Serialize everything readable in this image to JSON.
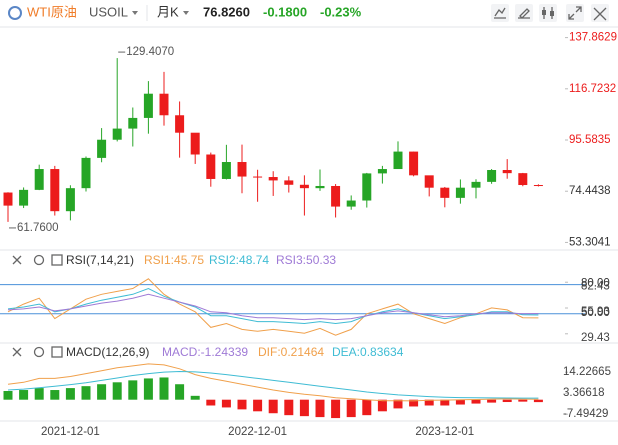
{
  "header": {
    "symbol_name": "WTI原油",
    "symbol": "USOIL",
    "period": "月K",
    "price": "76.8260",
    "change": "-0.1800",
    "change_pct": "-0.23%"
  },
  "chart_data": [
    {
      "type": "candlestick",
      "categories": [
        null,
        null,
        null,
        null,
        "2021-12-01",
        null,
        null,
        null,
        null,
        null,
        null,
        null,
        null,
        null,
        null,
        null,
        "2022-12-01",
        null,
        null,
        null,
        null,
        null,
        null,
        null,
        null,
        null,
        null,
        null,
        "2023-12-01",
        null,
        null,
        null,
        null,
        null,
        null
      ],
      "open": [
        73.9,
        68.5,
        75.0,
        83.6,
        66.2,
        75.7,
        88.2,
        95.7,
        100.3,
        104.7,
        114.7,
        105.8,
        98.6,
        89.6,
        79.5,
        86.5,
        80.5,
        80.3,
        78.9,
        77.1,
        75.7,
        76.6,
        68.1,
        70.6,
        81.8,
        83.6,
        90.8,
        81.0,
        75.9,
        71.7,
        75.9,
        78.3,
        83.2,
        81.9,
        77.0
      ],
      "high": [
        74.0,
        76.0,
        85.4,
        84.9,
        76.9,
        88.8,
        100.5,
        129.407,
        109.0,
        119.9,
        123.7,
        111.5,
        97.7,
        90.4,
        93.6,
        93.7,
        83.3,
        82.7,
        80.6,
        81.0,
        83.4,
        77.4,
        72.7,
        82.0,
        84.9,
        95.0,
        90.8,
        80.9,
        76.2,
        79.3,
        79.4,
        83.6,
        87.7,
        82.0,
        77.3
      ],
      "low": [
        61.76,
        67.5,
        74.9,
        64.4,
        62.4,
        74.3,
        86.4,
        95.0,
        92.9,
        98.2,
        101.5,
        88.3,
        85.7,
        76.3,
        79.3,
        73.6,
        70.1,
        72.5,
        73.9,
        64.4,
        74.6,
        63.6,
        66.8,
        67.7,
        77.6,
        83.6,
        80.6,
        72.3,
        67.8,
        69.3,
        71.5,
        77.5,
        79.6,
        76.5,
        76.4
      ],
      "close": [
        68.5,
        75.0,
        83.6,
        66.2,
        75.7,
        88.2,
        95.7,
        100.3,
        104.7,
        114.7,
        105.8,
        98.6,
        89.6,
        79.5,
        86.5,
        80.5,
        80.3,
        78.9,
        77.1,
        75.7,
        76.6,
        68.1,
        70.6,
        81.8,
        83.6,
        90.8,
        81.0,
        75.9,
        71.7,
        75.9,
        78.3,
        83.2,
        81.9,
        77.0,
        76.826
      ],
      "up_color": "#26a526",
      "down_color": "#ec1c1c",
      "ylim": [
        51,
        141
      ],
      "yticks": [
        137.8629,
        116.7232,
        95.5835,
        74.4438,
        53.3041
      ],
      "annotations": [
        {
          "value": 129.407,
          "label": "129.4070"
        },
        {
          "value": 61.76,
          "label": "61.7600"
        }
      ]
    },
    {
      "type": "line",
      "title": "RSI(7,14,21)",
      "series": [
        {
          "name": "RSI1:",
          "color": "#f0a04b",
          "values": [
            52,
            60,
            66,
            45,
            55,
            65,
            70,
            73,
            76,
            86,
            70,
            60,
            52,
            36,
            40,
            34,
            32,
            34,
            32,
            30,
            35,
            28,
            34,
            50,
            55,
            60,
            50,
            45,
            40,
            46,
            50,
            56,
            54,
            46,
            45.75
          ]
        },
        {
          "name": "RSI2:",
          "color": "#3fbcd4",
          "values": [
            55,
            57,
            60,
            52,
            55,
            60,
            64,
            67,
            70,
            76,
            68,
            62,
            57,
            48,
            48,
            45,
            42,
            42,
            41,
            40,
            42,
            40,
            42,
            48,
            52,
            55,
            51,
            48,
            45,
            47,
            49,
            52,
            52,
            49,
            48.74
          ]
        },
        {
          "name": "RSI3:",
          "color": "#9f7ad6",
          "values": [
            54,
            55,
            57,
            53,
            55,
            58,
            61,
            63,
            66,
            70,
            66,
            62,
            58,
            52,
            51,
            48,
            46,
            46,
            45,
            44,
            45,
            44,
            45,
            48,
            51,
            53,
            51,
            49,
            47,
            48,
            50,
            51,
            51,
            50,
            50.33
          ]
        }
      ],
      "ylim": [
        21,
        95
      ],
      "yticks": [
        82.43,
        55.93,
        29.43
      ],
      "hlines": [
        {
          "value": 80,
          "label": "80.00"
        },
        {
          "value": 50,
          "label": "50.00"
        }
      ],
      "hline_color": "#4a90d9"
    },
    {
      "type": "macd",
      "title": "MACD(12,26,9)",
      "histogram": {
        "name": "MACD:",
        "color": "#9f7ad6",
        "up_color": "#26a526",
        "down_color": "#ec1c1c",
        "values": [
          4.5,
          5,
          6,
          5,
          6,
          7,
          8,
          9,
          10,
          11,
          11.5,
          8,
          2,
          -3,
          -4,
          -5,
          -6,
          -7,
          -8,
          -8.5,
          -9,
          -9.5,
          -9,
          -8,
          -6,
          -4.5,
          -3.5,
          -3,
          -3,
          -2.5,
          -2,
          -1.5,
          -1.2,
          -1,
          -1.24339
        ]
      },
      "series": [
        {
          "name": "DIF:",
          "color": "#f0a04b",
          "values": [
            8,
            9,
            11,
            11,
            12,
            13.5,
            15,
            16.5,
            17.5,
            18.5,
            18,
            16,
            13,
            11,
            9.5,
            8,
            6.5,
            5,
            3.8,
            2.8,
            2,
            1,
            0.5,
            0,
            -0.5,
            -0.5,
            -0.6,
            -0.3,
            -0.2,
            0,
            0.1,
            0.3,
            0.4,
            0.3,
            0.21464
          ]
        },
        {
          "name": "DEA:",
          "color": "#3fbcd4",
          "values": [
            5,
            5.5,
            6.2,
            7,
            7.8,
            8.8,
            10,
            11.2,
            12.5,
            13.5,
            14.3,
            14.6,
            14.4,
            13.8,
            13,
            12,
            11,
            10,
            9,
            8,
            7,
            6,
            5,
            4,
            3.2,
            2.5,
            2,
            1.6,
            1.3,
            1.1,
            1,
            0.95,
            0.9,
            0.85,
            0.83634
          ]
        }
      ],
      "ylim": [
        -10.5,
        19.5
      ],
      "yticks": [
        14.22665,
        3.36618,
        -7.49429
      ]
    }
  ]
}
